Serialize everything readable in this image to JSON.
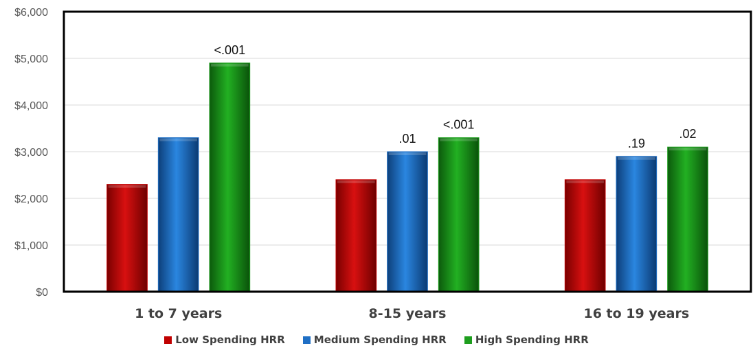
{
  "chart_data": {
    "type": "bar",
    "categories": [
      "1 to 7 years",
      "8-15 years",
      "16 to 19 years"
    ],
    "series": [
      {
        "name": "Low Spending HRR",
        "values": [
          2300,
          2400,
          2400
        ],
        "labels": [
          "",
          "",
          ""
        ],
        "color": "#c00000"
      },
      {
        "name": "Medium Spending HRR",
        "values": [
          3300,
          3000,
          2900
        ],
        "labels": [
          "",
          ".01",
          ".19"
        ],
        "color": "#1f6fc5"
      },
      {
        "name": "High Spending HRR",
        "values": [
          4900,
          3300,
          3100
        ],
        "labels": [
          "<.001",
          "<.001",
          ".02"
        ],
        "color": "#1e9e1e"
      }
    ],
    "yticks": [
      "$0",
      "$1,000",
      "$2,000",
      "$3,000",
      "$4,000",
      "$5,000",
      "$6,000"
    ],
    "ylim": [
      0,
      6000
    ],
    "grid": true,
    "legend": "bottom"
  }
}
